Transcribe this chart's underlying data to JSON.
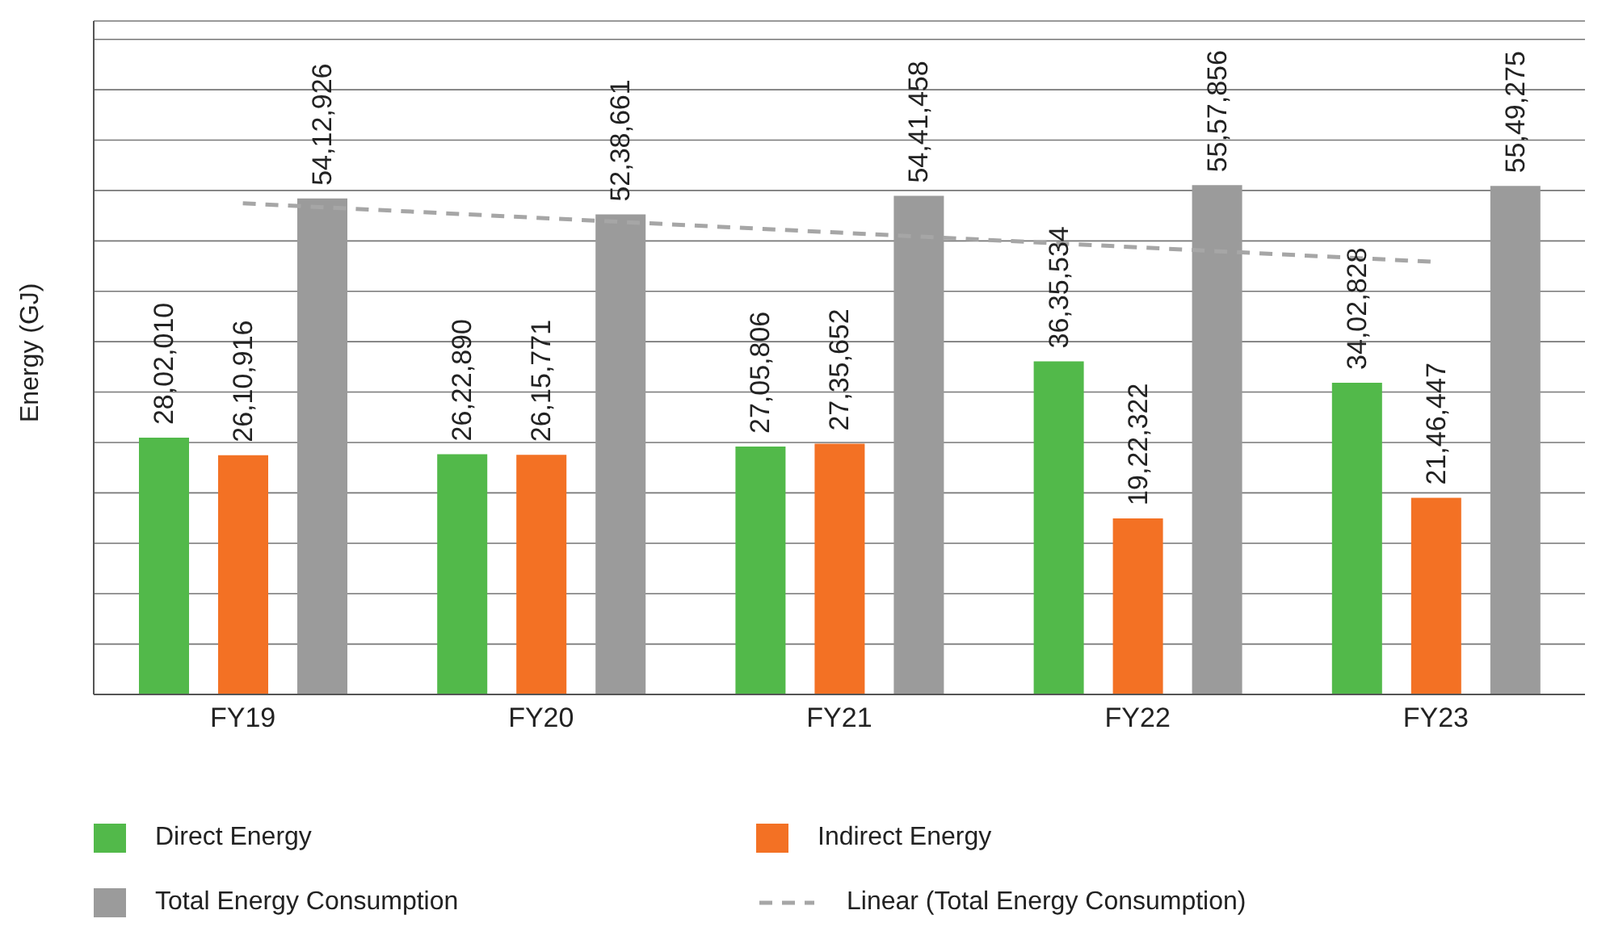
{
  "chart_data": {
    "type": "bar",
    "ylabel": "Energy (GJ)",
    "categories": [
      "FY19",
      "FY20",
      "FY21",
      "FY22",
      "FY23"
    ],
    "series": [
      {
        "name": "Direct Energy",
        "color": "#52b94a",
        "values": [
          2802010,
          2622890,
          2705806,
          3635534,
          3402828
        ],
        "value_labels": [
          "28,02,010",
          "26,22,890",
          "27,05,806",
          "36,35,534",
          "34,02,828"
        ]
      },
      {
        "name": "Indirect Energy",
        "color": "#f37124",
        "values": [
          2610916,
          2615771,
          2735652,
          1922322,
          2146447
        ],
        "value_labels": [
          "26,10,916",
          "26,15,771",
          "27,35,652",
          "19,22,322",
          "21,46,447"
        ]
      },
      {
        "name": "Total Energy Consumption",
        "color": "#9b9b9b",
        "values": [
          5412926,
          5238661,
          5441458,
          5557856,
          5549275
        ],
        "value_labels": [
          "54,12,926",
          "52,38,661",
          "54,41,458",
          "55,57,856",
          "55,49,275"
        ]
      },
      {
        "name": "Linear (Total Energy Consumption)",
        "type": "line",
        "color": "#a6a6a6",
        "line_style": "dashed",
        "marker": "none",
        "values": [
          5360000,
          5200000,
          5040000,
          4880000,
          4720000
        ]
      }
    ],
    "ylim": [
      0,
      7350000
    ],
    "tick_labels": "x",
    "grid": "y",
    "legend": "bottom"
  }
}
